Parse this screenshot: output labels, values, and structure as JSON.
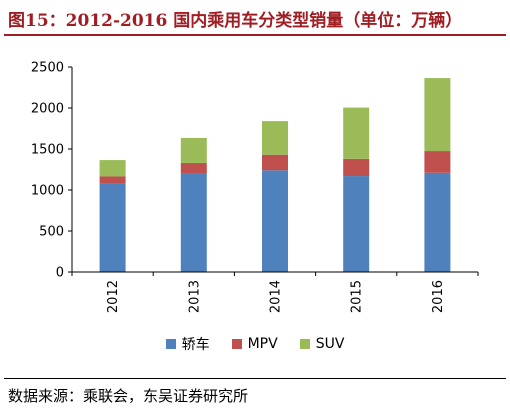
{
  "title": "图15：2012-2016 国内乘用车分类型销量（单位：万辆）",
  "source": "数据来源：乘联会，东吴证券研究所",
  "colors": {
    "title": "#a01e23",
    "series": [
      "#4f81bd",
      "#c0504d",
      "#9bbb59"
    ]
  },
  "chart_data": {
    "type": "bar",
    "stacked": true,
    "categories": [
      "2012",
      "2013",
      "2014",
      "2015",
      "2016"
    ],
    "series": [
      {
        "name": "轿车",
        "values": [
          1075,
          1200,
          1240,
          1170,
          1210
        ]
      },
      {
        "name": "MPV",
        "values": [
          90,
          130,
          190,
          210,
          265
        ]
      },
      {
        "name": "SUV",
        "values": [
          200,
          305,
          410,
          625,
          890
        ]
      }
    ],
    "title": "",
    "xlabel": "",
    "ylabel": "",
    "ylim": [
      0,
      2500
    ],
    "yticks": [
      0,
      500,
      1000,
      1500,
      2000,
      2500
    ],
    "grid": false,
    "legend_position": "bottom"
  }
}
